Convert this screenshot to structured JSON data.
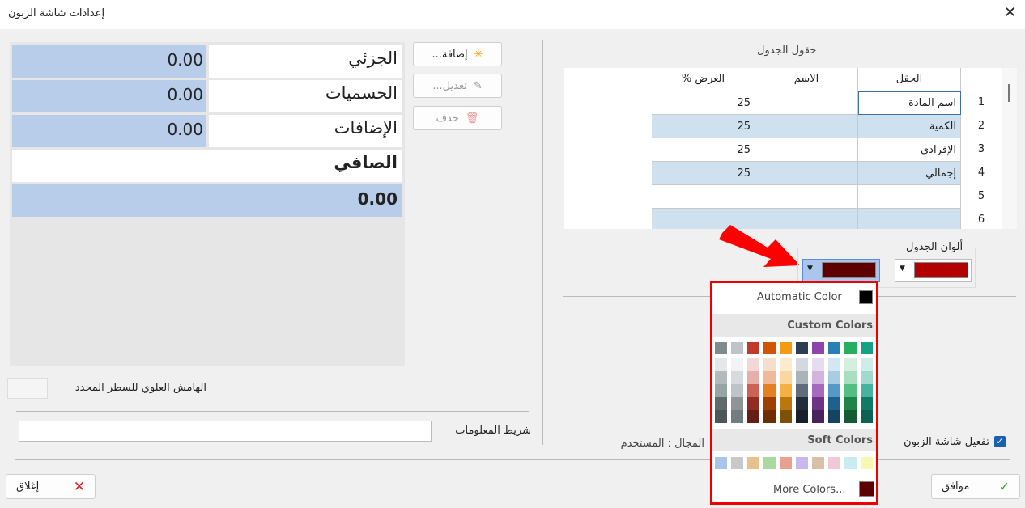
{
  "window": {
    "title": "إعدادات شاشة الزبون"
  },
  "totals": {
    "rows": [
      {
        "label": "الجزئي",
        "value": "0.00"
      },
      {
        "label": "الحسميات",
        "value": "0.00"
      },
      {
        "label": "الإضافات",
        "value": "0.00"
      }
    ],
    "net_label": "الصافي",
    "net_value": "0.00"
  },
  "buttons": {
    "add": "إضافة...",
    "edit": "تعديل...",
    "delete": "حذف",
    "ok": "موافق",
    "close": "إغلاق"
  },
  "top_margin_label": "الهامش العلوي للسطر المحدد",
  "info_bar_label": "شريط المعلومات",
  "fields_table": {
    "title": "حقول الجدول",
    "headers": [
      "الحقل",
      "الاسم",
      "العرض %"
    ],
    "rows": [
      {
        "num": 1,
        "field": "اسم المادة",
        "width": 25
      },
      {
        "num": 2,
        "field": "الكمية",
        "width": 25
      },
      {
        "num": 3,
        "field": "الإفرادي",
        "width": 25
      },
      {
        "num": 4,
        "field": "إجمالي",
        "width": 25
      },
      {
        "num": 5
      },
      {
        "num": 6
      }
    ]
  },
  "table_colors": {
    "label": "ألوان الجدول",
    "colors": [
      "#b30000",
      "#5c0000"
    ]
  },
  "color_picker": {
    "automatic": "Automatic Color",
    "automatic_color": "#000000",
    "custom_title": "Custom Colors",
    "soft_title": "Soft Colors",
    "more": "More Colors...",
    "more_color": "#5c0000",
    "custom_colors": [
      [
        "#7f8c8d",
        "#bdc3c7",
        "#c0392b",
        "#d35400",
        "#f39c12",
        "#2c3e50",
        "#8e44ad",
        "#2980b9",
        "#27ae60",
        "#16a085"
      ],
      [
        "#e5e8e8",
        "#f2f3f4",
        "#f2d7d5",
        "#f6ddcc",
        "#fdebd0",
        "#d5d8dc",
        "#e8daef",
        "#d4e6f1",
        "#d4efdf",
        "#d0ece7"
      ],
      [
        "#b2babb",
        "#d7dbdd",
        "#e6b0aa",
        "#edbb99",
        "#fad7a0",
        "#abb2b9",
        "#d2b4de",
        "#a9cce3",
        "#a9dfbf",
        "#a2d9ce"
      ],
      [
        "#95a5a6",
        "#bdc3c7",
        "#cd6155",
        "#e67e22",
        "#f5b041",
        "#5d6d7e",
        "#a569bd",
        "#5499c7",
        "#52be80",
        "#45b39d"
      ],
      [
        "#616a6b",
        "#909497",
        "#922b21",
        "#a04000",
        "#b9770e",
        "#212f3c",
        "#6c3483",
        "#1f618d",
        "#1e8449",
        "#117a65"
      ],
      [
        "#4d5656",
        "#717d7e",
        "#641e16",
        "#6e2c00",
        "#7e5109",
        "#17202a",
        "#4a235a",
        "#154360",
        "#145a32",
        "#0e6251"
      ]
    ],
    "soft_colors": [
      "#a9c4eb",
      "#c8c8c8",
      "#e8c08c",
      "#a9d9a0",
      "#e8a090",
      "#c8b8f0",
      "#d8c0a8",
      "#f0c8d8",
      "#c8ecf0",
      "#f8f8b0"
    ]
  },
  "activate_label": "تفعيل شاشة الزبون",
  "scope_label": "المجال : المستخدم"
}
